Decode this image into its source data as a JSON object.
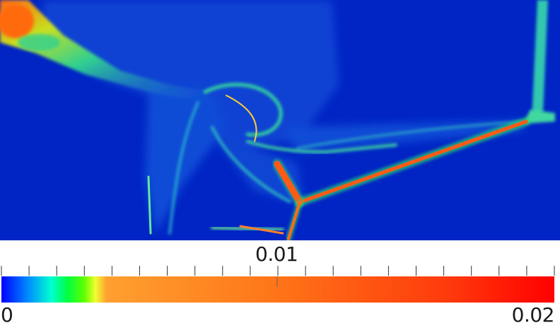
{
  "scalar_bar": {
    "min_label": "0",
    "mid_label": "0.01",
    "max_label": "0.02",
    "colormap": [
      "#0000ff",
      "#00a0ff",
      "#00ffd0",
      "#00ff40",
      "#60ff00",
      "#e8ff20",
      "#ffa030",
      "#ff7818",
      "#ff3c0c",
      "#ff0000"
    ]
  },
  "colors": {
    "background_field": "#0025c4",
    "low": "#0025c4",
    "mid": "#2cd6b0",
    "high": "#e8501c"
  }
}
